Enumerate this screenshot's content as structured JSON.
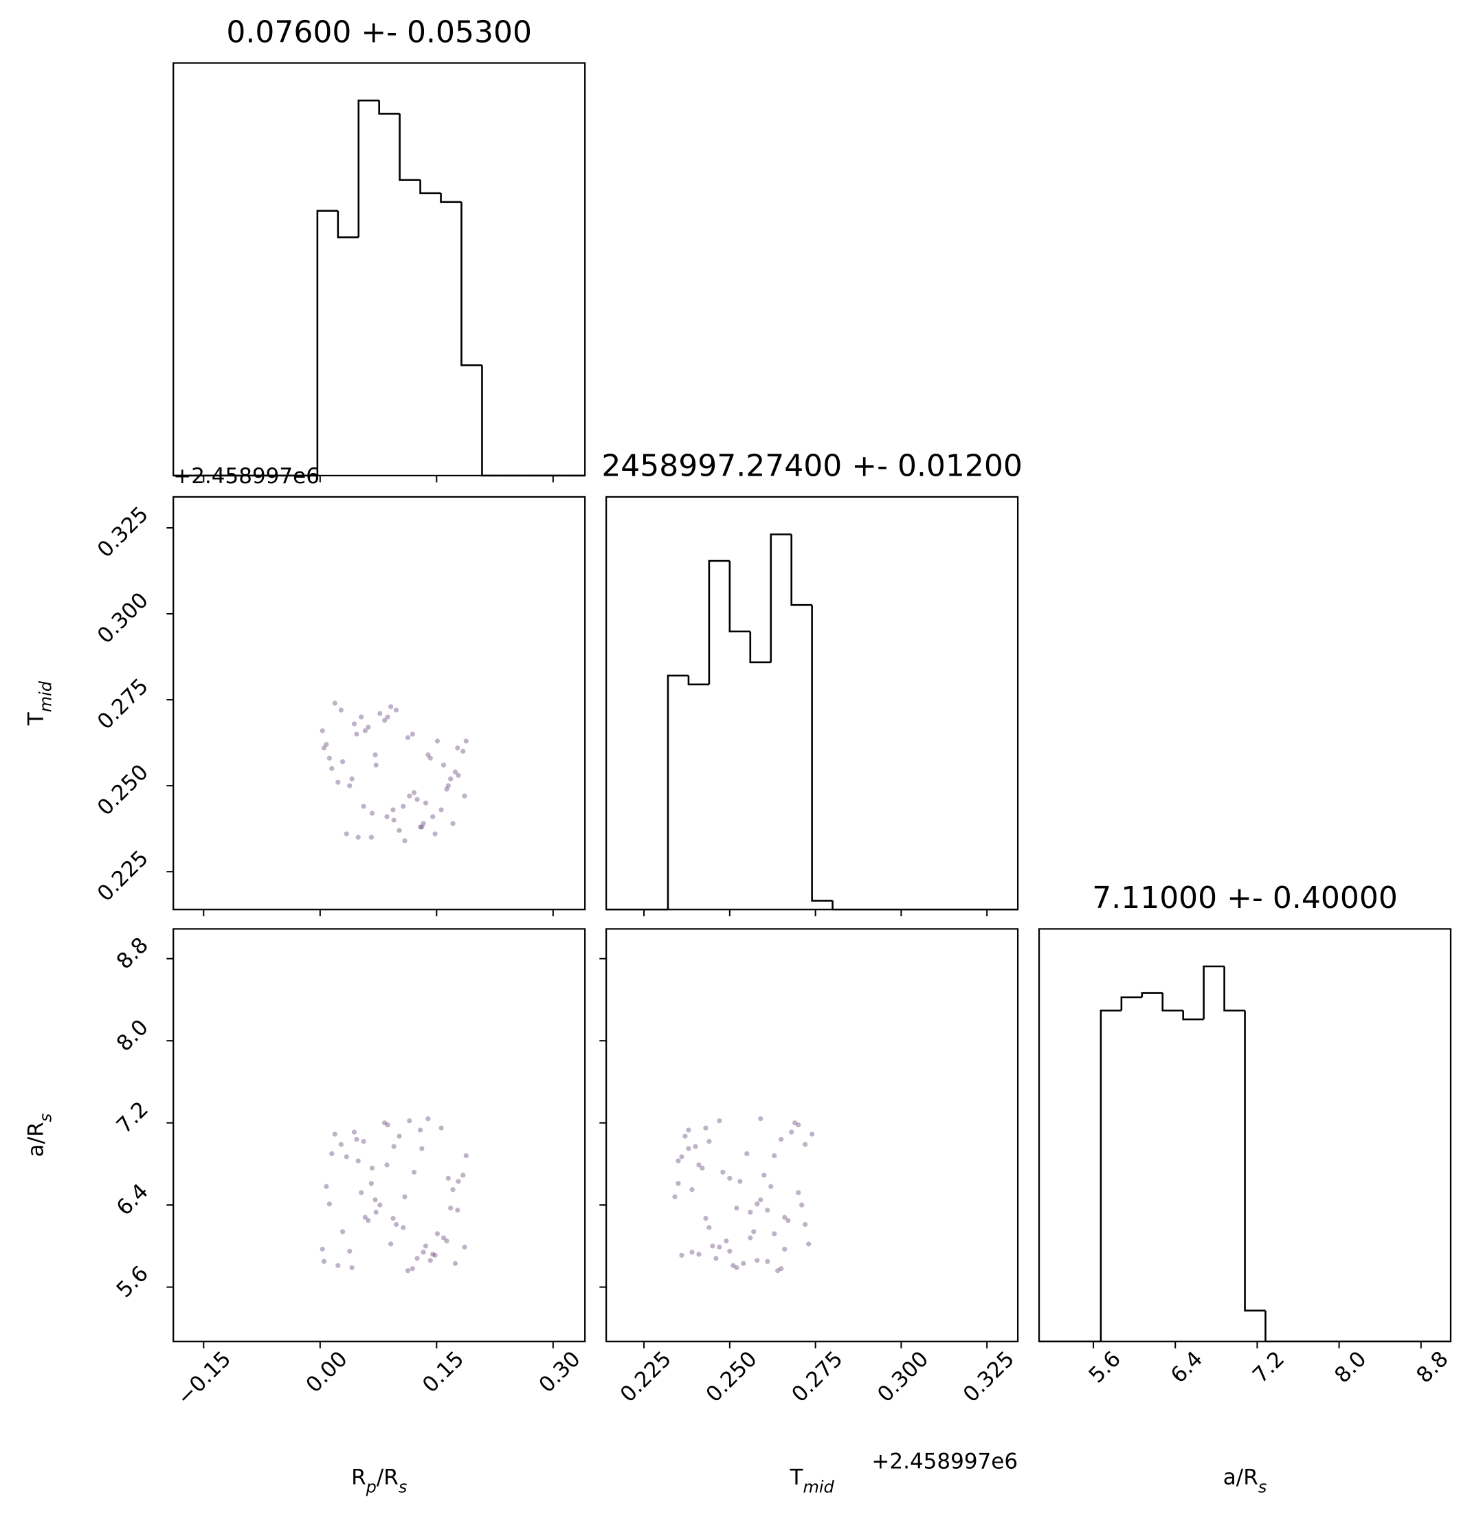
{
  "chart_data": {
    "type": "corner",
    "color": "#000000",
    "scatter_color": "#5e3c74",
    "hist_ylim": [
      0,
      93.5
    ],
    "parameters": [
      {
        "label": [
          {
            "text": "R"
          },
          {
            "text": "p",
            "sub": true,
            "italic": true
          },
          {
            "text": "/R"
          },
          {
            "text": "s",
            "sub": true,
            "italic": true
          }
        ],
        "title": "0.07600 +- 0.05300",
        "lim": [
          -0.189,
          0.341
        ],
        "ticks": [
          {
            "value": -0.15,
            "label": "−0.15"
          },
          {
            "value": 0,
            "label": "0.00"
          },
          0.15,
          {
            "value": 0.3,
            "label": "0.30"
          }
        ],
        "bins": [
          -0.189,
          -0.1625,
          -0.136,
          -0.1095,
          -0.083,
          -0.0565,
          -0.03,
          -0.0035,
          0.023,
          0.0495,
          0.076,
          0.1025,
          0.129,
          0.1555,
          0.182,
          0.2085,
          0.235,
          0.2615,
          0.288,
          0.3145,
          0.341
        ],
        "counts": [
          0,
          0,
          0,
          0,
          0,
          0,
          0,
          60,
          54,
          85,
          82,
          67,
          64,
          62,
          25,
          0,
          0,
          0,
          0,
          0
        ],
        "samples": [
          0.012,
          0.145,
          0.087,
          0.163,
          0.034,
          0.119,
          0.178,
          0.056,
          0.098,
          0.005,
          0.131,
          0.072,
          0.186,
          0.044,
          0.109,
          0.151,
          0.023,
          0.067,
          0.139,
          0.091,
          0.171,
          0.015,
          0.125,
          0.058,
          0.102,
          0.184,
          0.038,
          0.077,
          0.156,
          0.029,
          0.113,
          0.049,
          0.168,
          0.083,
          0.136,
          0.008,
          0.095,
          0.174,
          0.062,
          0.121,
          0.019,
          0.148,
          0.071,
          0.107,
          0.188,
          0.041,
          0.129,
          0.053,
          0.159,
          0.086,
          0.003,
          0.115,
          0.177,
          0.066,
          0.142,
          0.027,
          0.094,
          0.165,
          0.047,
          0.133
        ]
      },
      {
        "label": [
          {
            "text": "T"
          },
          {
            "text": "mid",
            "sub": true,
            "italic": true
          }
        ],
        "title": "2458997.27400 +- 0.01200",
        "offset": "+2.458997e6",
        "lim": [
          0.214,
          0.334
        ],
        "ticks": [
          0.225,
          {
            "value": 0.25,
            "label": "0.250"
          },
          0.275,
          {
            "value": 0.3,
            "label": "0.300"
          },
          0.325
        ],
        "bins": [
          0.214,
          0.22,
          0.226,
          0.232,
          0.238,
          0.244,
          0.25,
          0.256,
          0.262,
          0.268,
          0.274,
          0.28,
          0.286,
          0.292,
          0.298,
          0.304,
          0.31,
          0.316,
          0.322,
          0.328,
          0.334
        ],
        "counts": [
          0,
          0,
          0,
          53,
          51,
          79,
          63,
          56,
          85,
          69,
          2,
          0,
          0,
          0,
          0,
          0,
          0,
          0,
          0,
          0
        ],
        "samples": [
          0.258,
          0.241,
          0.27,
          0.249,
          0.236,
          0.265,
          0.253,
          0.244,
          0.272,
          0.261,
          0.238,
          0.256,
          0.247,
          0.268,
          0.234,
          0.263,
          0.251,
          0.242,
          0.259,
          0.273,
          0.239,
          0.255,
          0.246,
          0.266,
          0.237,
          0.26,
          0.25,
          0.271,
          0.243,
          0.257,
          0.264,
          0.235,
          0.252,
          0.269,
          0.245,
          0.262,
          0.24,
          0.254,
          0.267,
          0.248,
          0.274,
          0.236,
          0.259,
          0.244,
          0.263,
          0.252,
          0.238,
          0.27,
          0.256,
          0.241,
          0.266,
          0.247,
          0.261,
          0.235,
          0.258,
          0.272,
          0.243,
          0.25,
          0.265,
          0.239
        ]
      },
      {
        "label": [
          {
            "text": "a/R"
          },
          {
            "text": "s",
            "sub": true,
            "italic": true
          }
        ],
        "title": "7.11000 +- 0.40000",
        "lim": [
          5.07,
          9.09
        ],
        "ticks": [
          5.6,
          6.4,
          7.2,
          {
            "value": 8,
            "label": "8.0"
          },
          8.8
        ],
        "bins": [
          5.07,
          5.271,
          5.472,
          5.673,
          5.874,
          6.075,
          6.276,
          6.477,
          6.678,
          6.879,
          7.08,
          7.281,
          7.482,
          7.683,
          7.884,
          8.085,
          8.286,
          8.487,
          8.688,
          8.889,
          9.09
        ],
        "counts": [
          0,
          0,
          0,
          75,
          78,
          79,
          75,
          73,
          85,
          75,
          7,
          0,
          0,
          0,
          0,
          0,
          0,
          0,
          0,
          0
        ],
        "samples": [
          6.41,
          5.92,
          7.18,
          6.05,
          6.87,
          5.78,
          6.63,
          7.02,
          6.21,
          5.85,
          6.95,
          6.33,
          5.99,
          7.11,
          6.48,
          6.12,
          5.81,
          6.76,
          7.24,
          6.02,
          6.55,
          6.9,
          5.88,
          6.28,
          7.07,
          6.69,
          5.95,
          6.4,
          7.15,
          6.14,
          5.76,
          6.83,
          6.37,
          7.2,
          6.0,
          6.58,
          6.97,
          5.83,
          6.25,
          6.72,
          7.09,
          5.91,
          6.45,
          6.18,
          6.88,
          5.79,
          7.13,
          6.52,
          6.08,
          6.79,
          5.97,
          7.22,
          6.35,
          6.61,
          5.86,
          6.99,
          6.27,
          6.66,
          7.04,
          5.94
        ]
      }
    ]
  }
}
